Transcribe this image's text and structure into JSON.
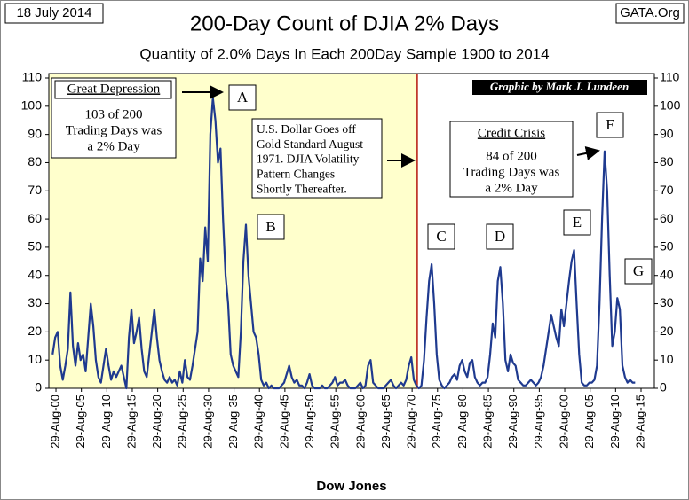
{
  "chart_data": {
    "type": "line",
    "date": "18 July 2014",
    "source": "GATA.Org",
    "title": "200-Day Count of  DJIA 2% Days",
    "subtitle": "Quantity of 2.0% Days In Each 200Day Sample 1900 to 2014",
    "xlabel": "Dow Jones",
    "credit": "Graphic by Mark J. Lundeen",
    "annotations": [
      {
        "title": "Great Depression",
        "lines": [
          "103 of 200",
          "Trading Days was",
          "a 2% Day"
        ]
      },
      {
        "lines": [
          "U.S. Dollar Goes off",
          "Gold Standard August",
          "1971.  DJIA Volatility",
          "Pattern Changes",
          "Shortly Thereafter."
        ]
      },
      {
        "title": "Credit Crisis",
        "lines": [
          "84 of 200",
          "Trading Days was",
          "a 2% Day"
        ]
      }
    ],
    "markers": [
      "A",
      "B",
      "C",
      "D",
      "E",
      "F",
      "G"
    ],
    "vline": 1971.6,
    "color": "#1f3a8f",
    "xlim": [
      1899.26,
      2018.28
    ],
    "ylim": [
      0,
      110
    ],
    "y2lim": [
      0,
      110
    ],
    "yticks": [
      0,
      10,
      20,
      30,
      40,
      50,
      60,
      70,
      80,
      90,
      100,
      110
    ],
    "y2ticks": [
      0,
      10,
      20,
      30,
      40,
      50,
      60,
      70,
      80,
      90,
      100,
      110
    ],
    "xticks": [
      {
        "value": 1900.66,
        "label": "29-Aug-00"
      },
      {
        "value": 1905.66,
        "label": "29-Aug-05"
      },
      {
        "value": 1910.66,
        "label": "29-Aug-10"
      },
      {
        "value": 1915.66,
        "label": "29-Aug-15"
      },
      {
        "value": 1920.66,
        "label": "29-Aug-20"
      },
      {
        "value": 1925.66,
        "label": "29-Aug-25"
      },
      {
        "value": 1930.66,
        "label": "29-Aug-30"
      },
      {
        "value": 1935.66,
        "label": "29-Aug-35"
      },
      {
        "value": 1940.66,
        "label": "29-Aug-40"
      },
      {
        "value": 1945.66,
        "label": "29-Aug-45"
      },
      {
        "value": 1950.66,
        "label": "29-Aug-50"
      },
      {
        "value": 1955.66,
        "label": "29-Aug-55"
      },
      {
        "value": 1960.66,
        "label": "29-Aug-60"
      },
      {
        "value": 1965.66,
        "label": "29-Aug-65"
      },
      {
        "value": 1970.66,
        "label": "29-Aug-70"
      },
      {
        "value": 1975.66,
        "label": "29-Aug-75"
      },
      {
        "value": 1980.66,
        "label": "29-Aug-80"
      },
      {
        "value": 1985.66,
        "label": "29-Aug-85"
      },
      {
        "value": 1990.66,
        "label": "29-Aug-90"
      },
      {
        "value": 1995.66,
        "label": "29-Aug-95"
      },
      {
        "value": 2000.66,
        "label": "29-Aug-00"
      },
      {
        "value": 2005.66,
        "label": "29-Aug-05"
      },
      {
        "value": 2010.66,
        "label": "29-Aug-10"
      },
      {
        "value": 2015.66,
        "label": "29-Aug-15"
      }
    ],
    "x": [
      1900,
      1900.5,
      1901,
      1901.5,
      1902,
      1902.5,
      1903,
      1903.5,
      1904,
      1904.5,
      1905,
      1905.5,
      1906,
      1906.5,
      1907,
      1907.5,
      1908,
      1908.5,
      1909,
      1909.5,
      1910,
      1910.5,
      1911,
      1911.5,
      1912,
      1912.5,
      1913,
      1913.5,
      1914,
      1914.5,
      1915,
      1915.5,
      1916,
      1916.5,
      1917,
      1917.5,
      1918,
      1918.5,
      1919,
      1919.5,
      1920,
      1920.5,
      1921,
      1921.5,
      1922,
      1922.5,
      1923,
      1923.5,
      1924,
      1924.5,
      1925,
      1925.5,
      1926,
      1926.5,
      1927,
      1927.5,
      1928,
      1928.5,
      1929,
      1929.5,
      1930,
      1930.5,
      1931,
      1931.5,
      1932,
      1932.5,
      1933,
      1933.5,
      1934,
      1934.5,
      1935,
      1935.5,
      1936,
      1936.5,
      1937,
      1937.5,
      1938,
      1938.5,
      1939,
      1939.5,
      1940,
      1940.5,
      1941,
      1941.5,
      1942,
      1942.5,
      1943,
      1943.5,
      1944,
      1944.5,
      1945,
      1945.5,
      1946,
      1946.5,
      1947,
      1947.5,
      1948,
      1948.5,
      1949,
      1949.5,
      1950,
      1950.5,
      1951,
      1951.5,
      1952,
      1952.5,
      1953,
      1953.5,
      1954,
      1954.5,
      1955,
      1955.5,
      1956,
      1956.5,
      1957,
      1957.5,
      1958,
      1958.5,
      1959,
      1959.5,
      1960,
      1960.5,
      1961,
      1961.5,
      1962,
      1962.5,
      1963,
      1963.5,
      1964,
      1964.5,
      1965,
      1965.5,
      1966,
      1966.5,
      1967,
      1967.5,
      1968,
      1968.5,
      1969,
      1969.5,
      1970,
      1970.5,
      1971,
      1971.5,
      1972,
      1972.5,
      1973,
      1973.5,
      1974,
      1974.5,
      1975,
      1975.5,
      1976,
      1976.5,
      1977,
      1977.5,
      1978,
      1978.5,
      1979,
      1979.5,
      1980,
      1980.5,
      1981,
      1981.5,
      1982,
      1982.5,
      1983,
      1983.5,
      1984,
      1984.5,
      1985,
      1985.5,
      1986,
      1986.5,
      1987,
      1987.5,
      1988,
      1988.5,
      1989,
      1989.5,
      1990,
      1990.5,
      1991,
      1991.5,
      1992,
      1992.5,
      1993,
      1993.5,
      1994,
      1994.5,
      1995,
      1995.5,
      1996,
      1996.5,
      1997,
      1997.5,
      1998,
      1998.5,
      1999,
      1999.5,
      2000,
      2000.5,
      2001,
      2001.5,
      2002,
      2002.5,
      2003,
      2003.5,
      2004,
      2004.5,
      2005,
      2005.5,
      2006,
      2006.5,
      2007,
      2007.5,
      2008,
      2008.5,
      2009,
      2009.5,
      2010,
      2010.5,
      2011,
      2011.5,
      2012,
      2012.5,
      2013,
      2013.5,
      2014,
      2014.5
    ],
    "values": [
      12,
      18,
      20,
      8,
      3,
      8,
      14,
      34,
      15,
      8,
      16,
      10,
      12,
      6,
      18,
      30,
      22,
      10,
      4,
      2,
      8,
      14,
      8,
      3,
      6,
      4,
      6,
      8,
      4,
      0,
      18,
      28,
      16,
      20,
      25,
      14,
      6,
      4,
      12,
      20,
      28,
      18,
      10,
      6,
      3,
      2,
      4,
      2,
      3,
      1,
      6,
      2,
      10,
      4,
      3,
      8,
      14,
      20,
      46,
      38,
      57,
      45,
      90,
      103,
      95,
      80,
      85,
      60,
      40,
      30,
      12,
      8,
      6,
      4,
      20,
      45,
      58,
      40,
      30,
      20,
      18,
      12,
      3,
      1,
      2,
      0,
      1,
      0,
      0,
      0,
      1,
      2,
      5,
      8,
      4,
      2,
      3,
      1,
      1,
      0,
      2,
      5,
      1,
      0,
      0,
      0,
      1,
      0,
      0,
      1,
      2,
      4,
      1,
      2,
      2,
      3,
      1,
      0,
      0,
      0,
      1,
      2,
      0,
      1,
      8,
      10,
      2,
      1,
      0,
      0,
      0,
      1,
      2,
      3,
      1,
      0,
      1,
      2,
      1,
      3,
      8,
      11,
      3,
      1,
      0,
      1,
      10,
      25,
      38,
      44,
      30,
      12,
      3,
      1,
      0,
      1,
      2,
      4,
      5,
      3,
      8,
      10,
      6,
      4,
      9,
      10,
      4,
      2,
      1,
      2,
      2,
      4,
      12,
      23,
      18,
      38,
      43,
      30,
      10,
      6,
      12,
      9,
      8,
      3,
      2,
      1,
      1,
      2,
      3,
      2,
      1,
      2,
      4,
      8,
      14,
      20,
      26,
      22,
      18,
      15,
      28,
      22,
      30,
      38,
      45,
      49,
      30,
      12,
      2,
      1,
      1,
      2,
      2,
      3,
      8,
      30,
      60,
      84,
      70,
      40,
      15,
      20,
      32,
      28,
      8,
      4,
      2,
      3,
      2,
      2
    ]
  }
}
